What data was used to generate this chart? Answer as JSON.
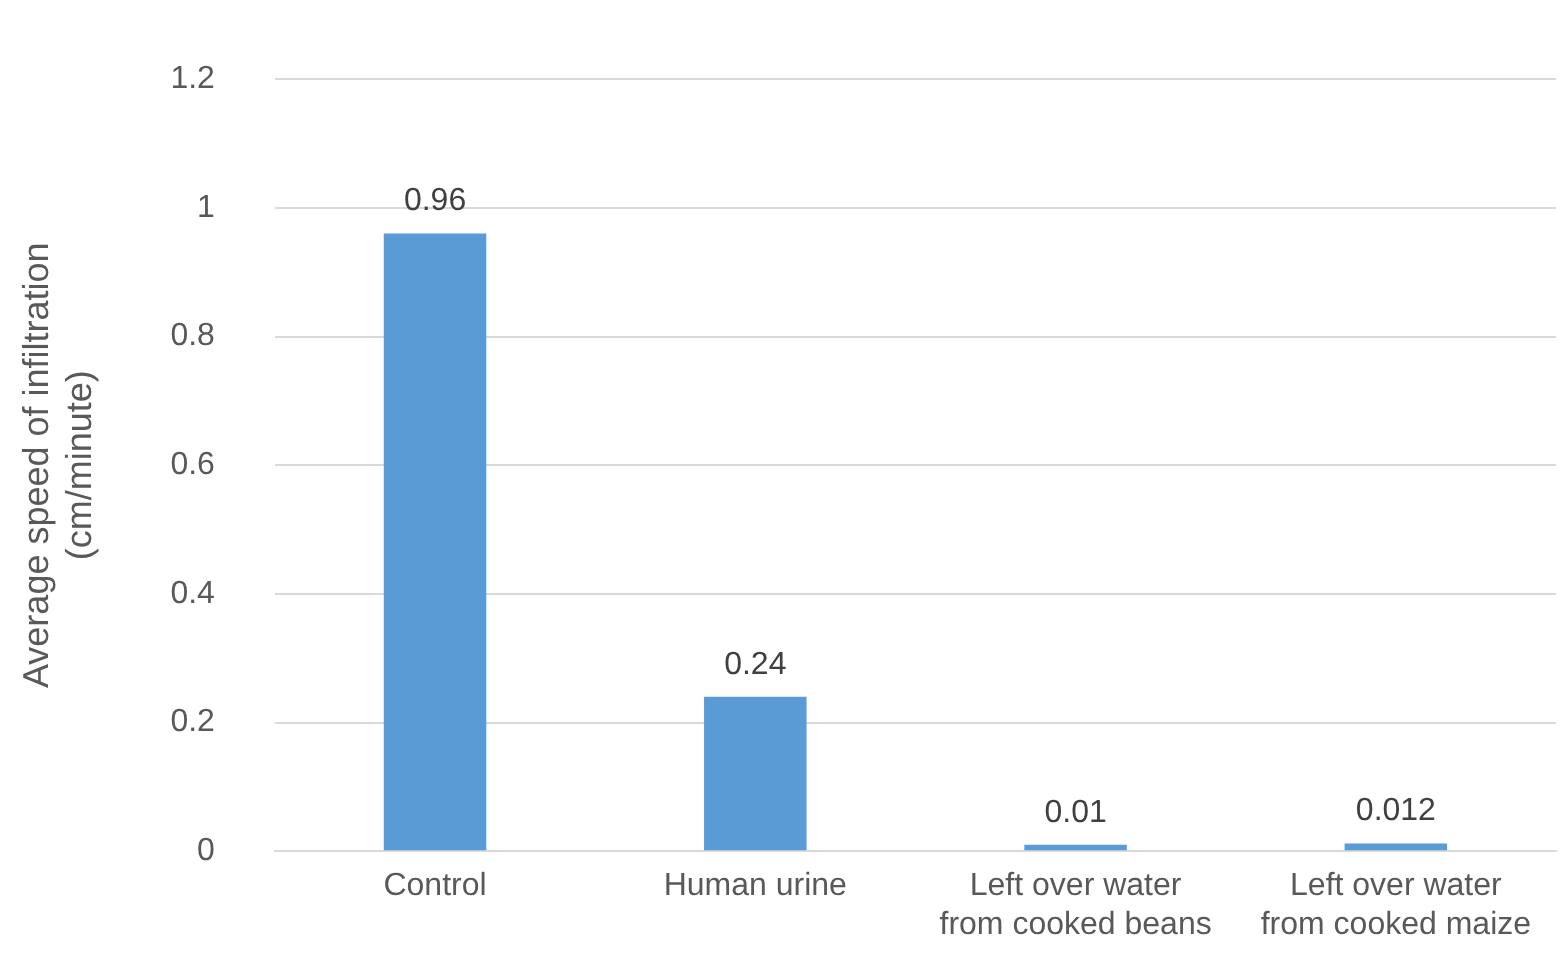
{
  "chart_data": {
    "type": "bar",
    "ylabel": "Average speed of infiltration\n(cm/minute)",
    "categories": [
      "Control",
      "Human urine",
      "Left over water\nfrom cooked beans",
      "Left over water\nfrom cooked maize"
    ],
    "values": [
      0.96,
      0.24,
      0.01,
      0.012
    ],
    "color": "#5b9bd5",
    "ylim": [
      0,
      1.2
    ],
    "yticks": [
      0,
      0.2,
      0.4,
      0.6,
      0.8,
      1,
      1.2
    ],
    "grid": "y",
    "data_labels": true,
    "legend": false
  }
}
